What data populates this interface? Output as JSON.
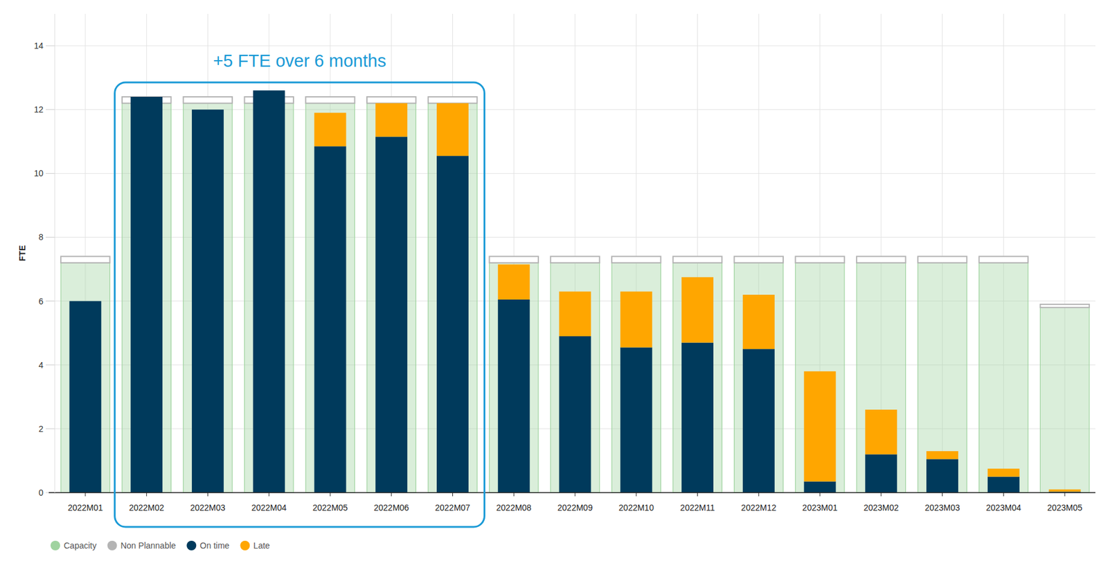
{
  "chart_data": {
    "type": "bar",
    "stacked": true,
    "grid": true,
    "legend": "bottom-left",
    "y_label": "FTE",
    "annotation": {
      "text": "+5 FTE over 6 months",
      "from": "2022M02",
      "to": "2022M07"
    },
    "categories": [
      "2022M01",
      "2022M02",
      "2022M03",
      "2022M04",
      "2022M05",
      "2022M06",
      "2022M07",
      "2022M08",
      "2022M09",
      "2022M10",
      "2022M11",
      "2022M12",
      "2023M01",
      "2023M02",
      "2023M03",
      "2023M04",
      "2023M05"
    ],
    "ylim": [
      0,
      15
    ],
    "yticks": [
      0,
      2,
      4,
      6,
      8,
      10,
      12,
      14
    ],
    "series": [
      {
        "name": "Capacity",
        "type": "background",
        "color": "#9fd39f",
        "values": [
          7.2,
          12.2,
          12.2,
          12.2,
          12.2,
          12.2,
          12.2,
          7.2,
          7.2,
          7.2,
          7.2,
          7.2,
          7.2,
          7.2,
          7.2,
          7.2,
          5.8
        ]
      },
      {
        "name": "Non Plannable",
        "type": "background",
        "line_style": "outline",
        "color": "#b4b4b4",
        "values": [
          0.2,
          0.2,
          0.2,
          0.2,
          0.2,
          0.2,
          0.2,
          0.2,
          0.2,
          0.2,
          0.2,
          0.2,
          0.2,
          0.2,
          0.2,
          0.2,
          0.1
        ]
      },
      {
        "name": "On time",
        "type": "bar",
        "color": "#003a5c",
        "values": [
          6.0,
          12.4,
          12.0,
          12.6,
          10.85,
          11.15,
          10.55,
          6.05,
          4.9,
          4.55,
          4.7,
          4.5,
          0.35,
          1.2,
          1.05,
          0.5,
          0.03
        ]
      },
      {
        "name": "Late",
        "type": "bar",
        "color": "#ffa600",
        "values": [
          0,
          0,
          0,
          0,
          1.05,
          1.05,
          1.65,
          1.1,
          1.4,
          1.75,
          2.05,
          1.7,
          3.45,
          1.4,
          0.25,
          0.25,
          0.07
        ]
      }
    ]
  }
}
